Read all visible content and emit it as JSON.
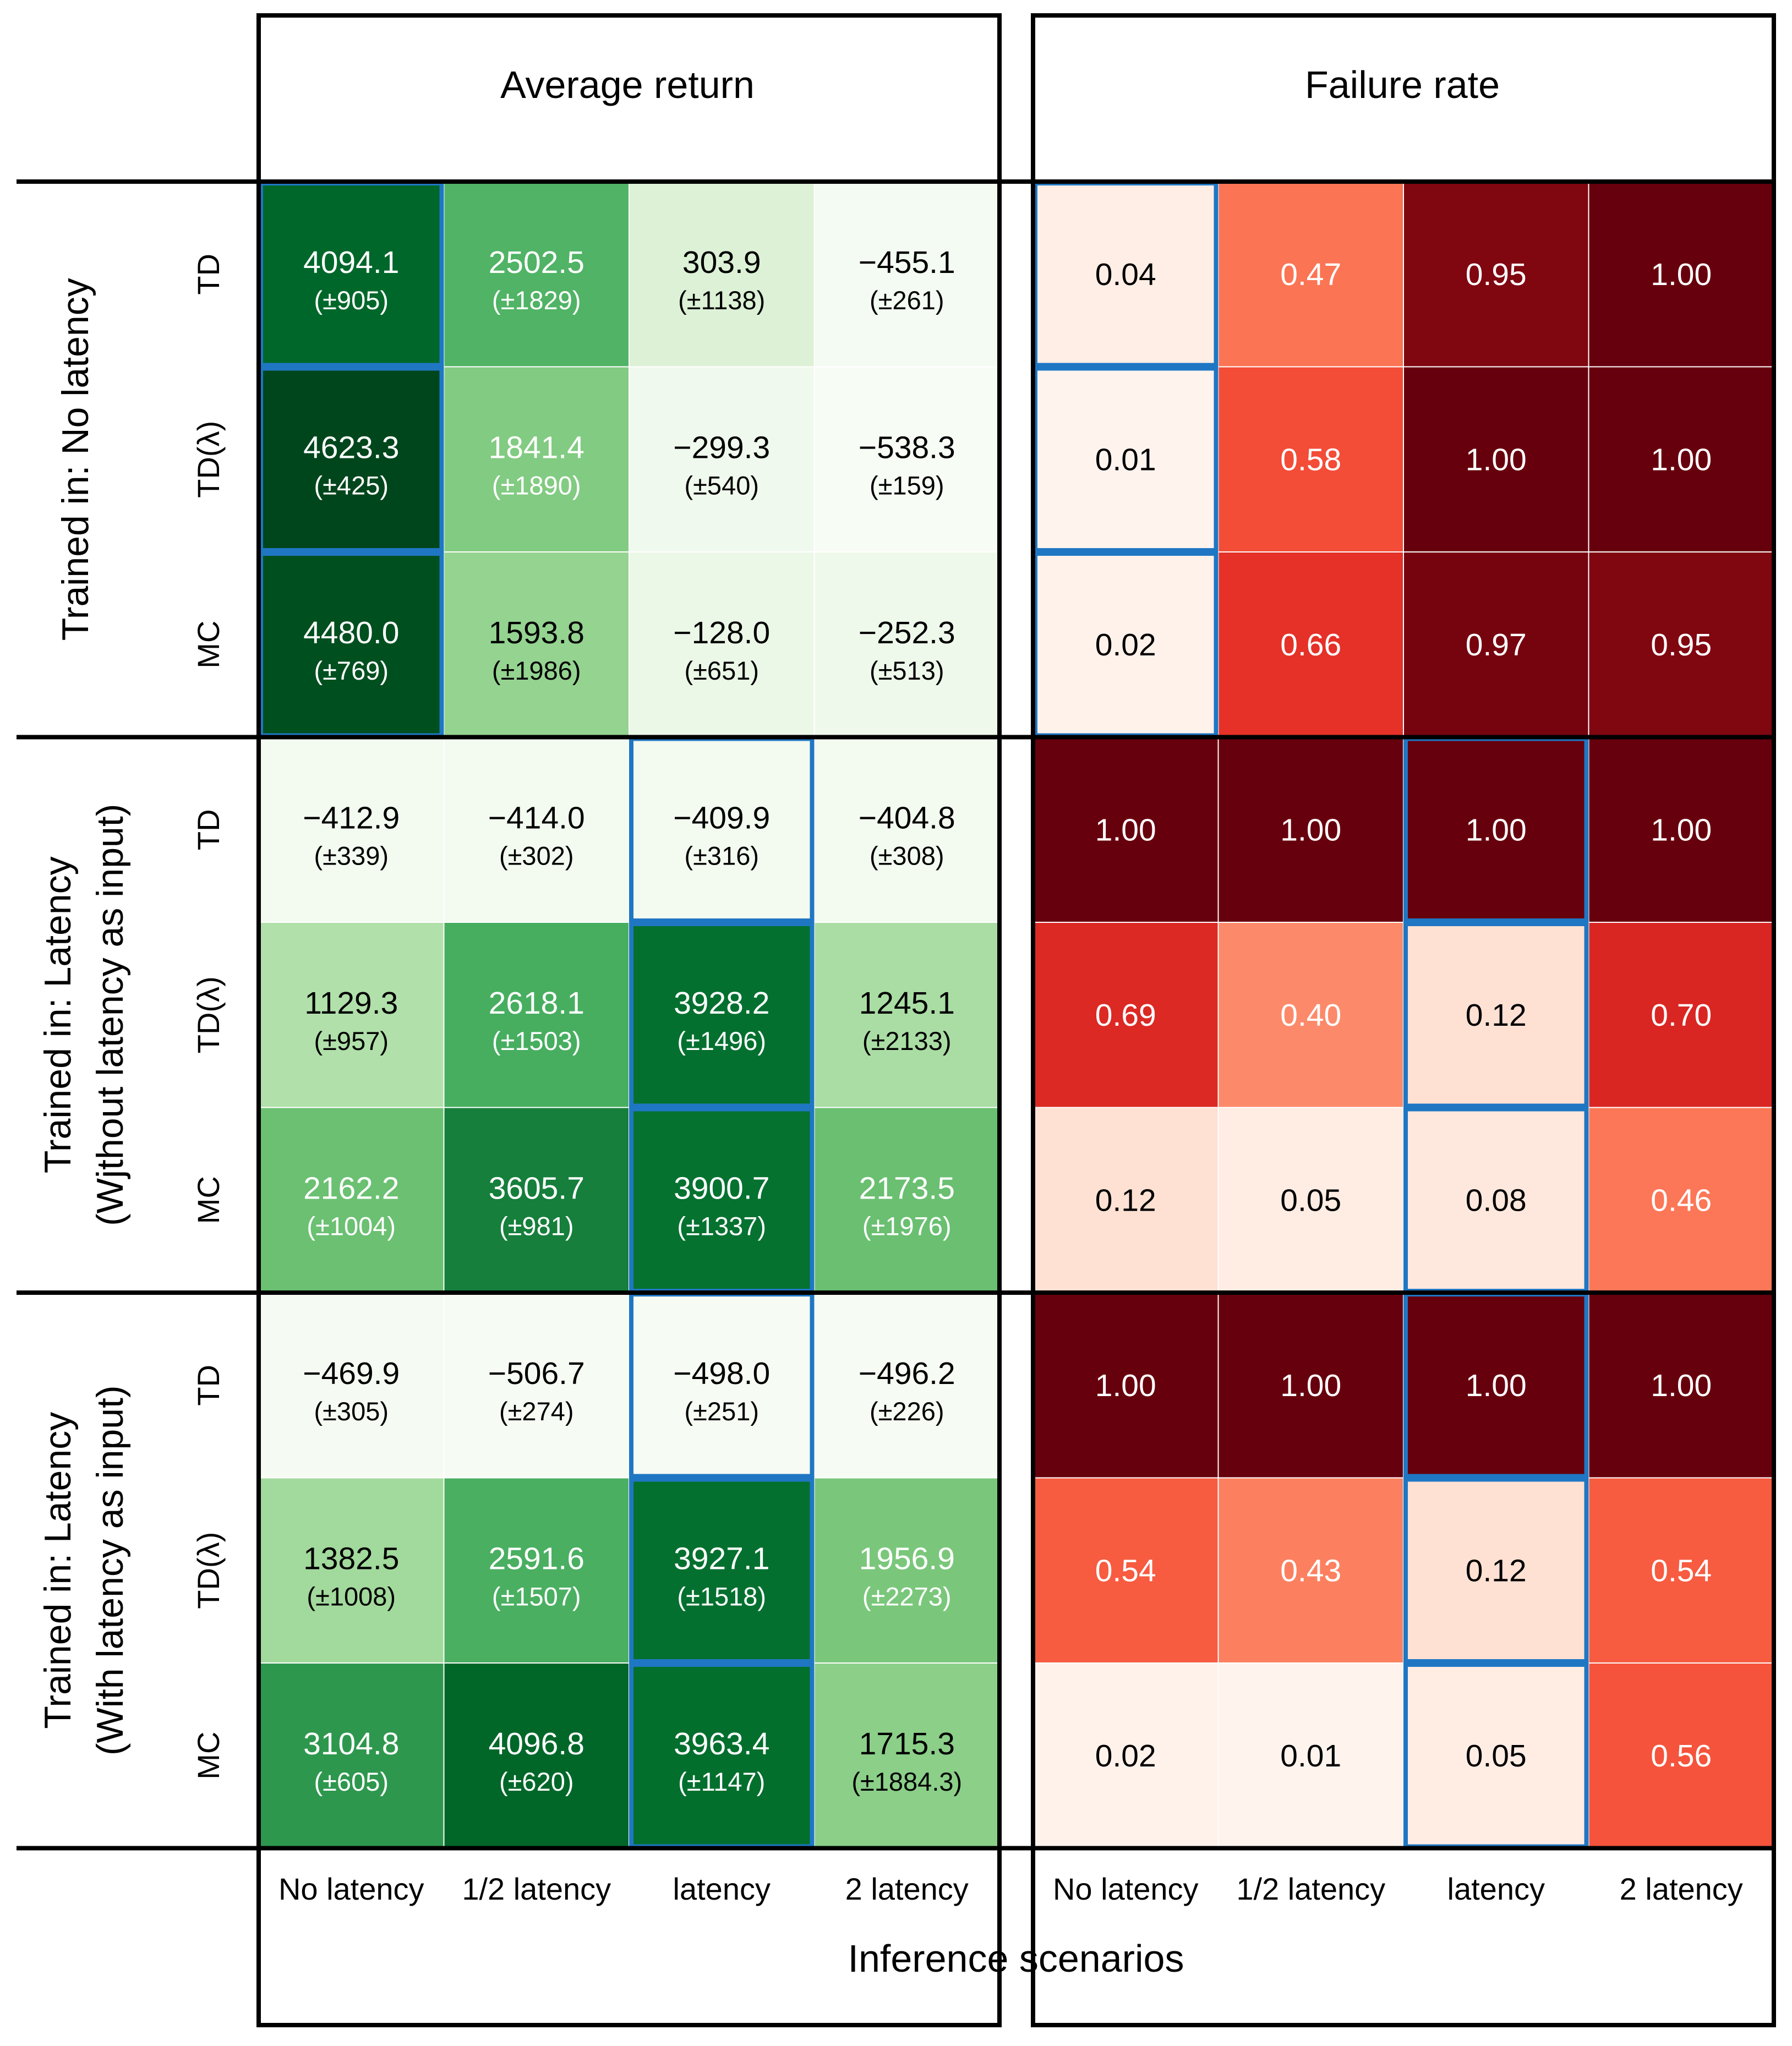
{
  "chart_data": {
    "type": "heatmap",
    "panel_titles": [
      "Average return",
      "Failure rate"
    ],
    "xlabel": "Inference scenarios",
    "columns": [
      "No latency",
      "1/2 latency",
      "latency",
      "2 latency"
    ],
    "row_groups": [
      {
        "label_lines": [
          "Trained in: No latency"
        ],
        "rows": [
          "TD",
          "TD(λ)",
          "MC"
        ]
      },
      {
        "label_lines": [
          "Trained in: Latency",
          "(Wjthout latency as input)"
        ],
        "rows": [
          "TD",
          "TD(λ)",
          "MC"
        ]
      },
      {
        "label_lines": [
          "Trained in: Latency",
          "(With latency as input)"
        ],
        "rows": [
          "TD",
          "TD(λ)",
          "MC"
        ]
      }
    ],
    "average_return": {
      "values": [
        [
          "4094.1",
          "2502.5",
          "303.9",
          "−455.1"
        ],
        [
          "4623.3",
          "1841.4",
          "−299.3",
          "−538.3"
        ],
        [
          "4480.0",
          "1593.8",
          "−128.0",
          "−252.3"
        ],
        [
          "−412.9",
          "−414.0",
          "−409.9",
          "−404.8"
        ],
        [
          "1129.3",
          "2618.1",
          "3928.2",
          "1245.1"
        ],
        [
          "2162.2",
          "3605.7",
          "3900.7",
          "2173.5"
        ],
        [
          "−469.9",
          "−506.7",
          "−498.0",
          "−496.2"
        ],
        [
          "1382.5",
          "2591.6",
          "3927.1",
          "1956.9"
        ],
        [
          "3104.8",
          "4096.8",
          "3963.4",
          "1715.3"
        ]
      ],
      "std": [
        [
          "(±905)",
          "(±1829)",
          "(±1138)",
          "(±261)"
        ],
        [
          "(±425)",
          "(±1890)",
          "(±540)",
          "(±159)"
        ],
        [
          "(±769)",
          "(±1986)",
          "(±651)",
          "(±513)"
        ],
        [
          "(±339)",
          "(±302)",
          "(±316)",
          "(±308)"
        ],
        [
          "(±957)",
          "(±1503)",
          "(±1496)",
          "(±2133)"
        ],
        [
          "(±1004)",
          "(±981)",
          "(±1337)",
          "(±1976)"
        ],
        [
          "(±305)",
          "(±274)",
          "(±251)",
          "(±226)"
        ],
        [
          "(±1008)",
          "(±1507)",
          "(±1518)",
          "(±2273)"
        ],
        [
          "(±605)",
          "(±620)",
          "(±1147)",
          "(±1884.3)"
        ]
      ],
      "color_range": [
        -550,
        4650
      ]
    },
    "failure_rate": {
      "values": [
        [
          "0.04",
          "0.47",
          "0.95",
          "1.00"
        ],
        [
          "0.01",
          "0.58",
          "1.00",
          "1.00"
        ],
        [
          "0.02",
          "0.66",
          "0.97",
          "0.95"
        ],
        [
          "1.00",
          "1.00",
          "1.00",
          "1.00"
        ],
        [
          "0.69",
          "0.40",
          "0.12",
          "0.70"
        ],
        [
          "0.12",
          "0.05",
          "0.08",
          "0.46"
        ],
        [
          "1.00",
          "1.00",
          "1.00",
          "1.00"
        ],
        [
          "0.54",
          "0.43",
          "0.12",
          "0.54"
        ],
        [
          "0.02",
          "0.01",
          "0.05",
          "0.56"
        ]
      ],
      "color_range": [
        0,
        1
      ]
    },
    "highlighted_column": [
      0,
      0,
      0,
      2,
      2,
      2,
      2,
      2,
      2
    ],
    "colors": {
      "return_cmap": "Greens",
      "failure_cmap": "Reds",
      "highlight": "#1f77c4"
    }
  }
}
